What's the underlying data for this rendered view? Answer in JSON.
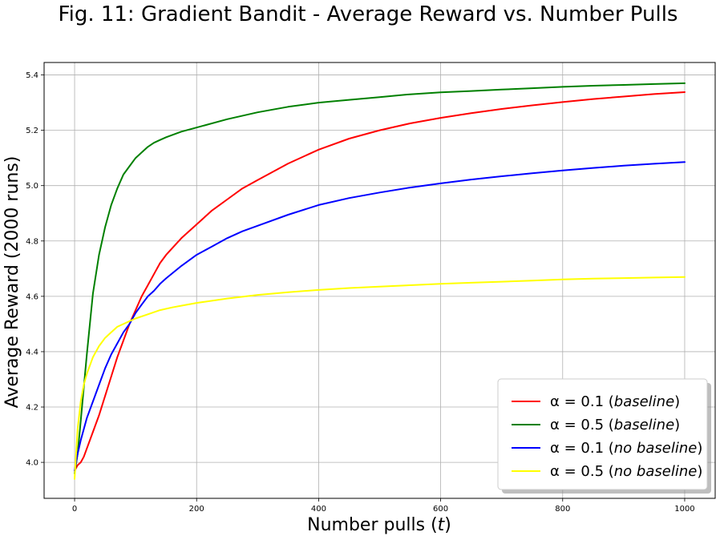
{
  "chart_data": {
    "type": "line",
    "title": "Fig. 11: Gradient Bandit - Average Reward vs. Number Pulls",
    "xlabel": "Number pulls (t)",
    "xlabel_parts": {
      "before": "Number pulls (",
      "var": "t",
      "after": ")"
    },
    "ylabel": "Average Reward (2000 runs)",
    "xlim": [
      -50,
      1050
    ],
    "ylim": [
      3.87,
      5.445
    ],
    "xticks": [
      0,
      200,
      400,
      600,
      800,
      1000
    ],
    "xtick_labels": [
      "0",
      "200",
      "400",
      "600",
      "800",
      "1000"
    ],
    "yticks": [
      4.0,
      4.2,
      4.4,
      4.6,
      4.8,
      5.0,
      5.2,
      5.4
    ],
    "ytick_labels": [
      "4.0",
      "4.2",
      "4.4",
      "4.6",
      "4.8",
      "5.0",
      "5.2",
      "5.4"
    ],
    "grid": true,
    "legend_position": "lower-right",
    "series": [
      {
        "name": "α = 0.1 (baseline)",
        "alpha_text": "α = 0.1 (",
        "italic_text": "baseline",
        "close_text": ")",
        "color": "#ff0000",
        "x": [
          0,
          5,
          10,
          15,
          20,
          30,
          40,
          50,
          60,
          70,
          80,
          90,
          100,
          110,
          120,
          130,
          140,
          150,
          175,
          200,
          225,
          250,
          275,
          300,
          350,
          400,
          450,
          500,
          550,
          600,
          650,
          700,
          750,
          800,
          850,
          900,
          950,
          1000
        ],
        "y": [
          3.97,
          3.99,
          4.0,
          4.02,
          4.05,
          4.11,
          4.17,
          4.24,
          4.31,
          4.38,
          4.44,
          4.5,
          4.55,
          4.6,
          4.64,
          4.68,
          4.72,
          4.75,
          4.81,
          4.86,
          4.91,
          4.95,
          4.99,
          5.02,
          5.08,
          5.13,
          5.17,
          5.2,
          5.225,
          5.245,
          5.262,
          5.277,
          5.29,
          5.302,
          5.313,
          5.322,
          5.331,
          5.338
        ]
      },
      {
        "name": "α = 0.5 (baseline)",
        "alpha_text": "α = 0.5 (",
        "italic_text": "baseline",
        "close_text": ")",
        "color": "#008000",
        "x": [
          0,
          5,
          10,
          15,
          20,
          25,
          30,
          40,
          50,
          60,
          70,
          80,
          90,
          100,
          110,
          120,
          130,
          140,
          150,
          175,
          200,
          250,
          300,
          350,
          400,
          450,
          500,
          550,
          600,
          650,
          700,
          750,
          800,
          850,
          900,
          950,
          1000
        ],
        "y": [
          3.96,
          4.03,
          4.15,
          4.27,
          4.39,
          4.5,
          4.61,
          4.75,
          4.85,
          4.93,
          4.99,
          5.04,
          5.07,
          5.1,
          5.12,
          5.14,
          5.155,
          5.165,
          5.175,
          5.195,
          5.21,
          5.24,
          5.265,
          5.285,
          5.3,
          5.31,
          5.32,
          5.33,
          5.337,
          5.342,
          5.347,
          5.352,
          5.357,
          5.361,
          5.364,
          5.367,
          5.37
        ]
      },
      {
        "name": "α = 0.1 (no baseline)",
        "alpha_text": "α = 0.1 (",
        "italic_text": "no baseline",
        "close_text": ")",
        "color": "#0000ff",
        "x": [
          0,
          5,
          10,
          15,
          20,
          30,
          40,
          50,
          60,
          70,
          80,
          90,
          100,
          110,
          120,
          130,
          140,
          150,
          175,
          200,
          225,
          250,
          275,
          300,
          350,
          400,
          450,
          500,
          550,
          600,
          650,
          700,
          750,
          800,
          850,
          900,
          950,
          1000
        ],
        "y": [
          3.97,
          4.03,
          4.08,
          4.12,
          4.16,
          4.22,
          4.28,
          4.34,
          4.39,
          4.43,
          4.47,
          4.5,
          4.54,
          4.57,
          4.6,
          4.62,
          4.645,
          4.665,
          4.71,
          4.75,
          4.78,
          4.81,
          4.835,
          4.855,
          4.895,
          4.93,
          4.955,
          4.975,
          4.993,
          5.008,
          5.022,
          5.034,
          5.045,
          5.055,
          5.064,
          5.072,
          5.079,
          5.085
        ]
      },
      {
        "name": "α = 0.5 (no baseline)",
        "alpha_text": "α = 0.5 (",
        "italic_text": "no baseline",
        "close_text": ")",
        "color": "#ffff00",
        "x": [
          0,
          3,
          5,
          10,
          15,
          20,
          30,
          40,
          50,
          60,
          70,
          80,
          90,
          100,
          120,
          140,
          160,
          180,
          200,
          250,
          300,
          350,
          400,
          450,
          500,
          550,
          600,
          650,
          700,
          750,
          800,
          850,
          900,
          950,
          1000
        ],
        "y": [
          3.94,
          4.05,
          4.12,
          4.22,
          4.28,
          4.32,
          4.38,
          4.42,
          4.45,
          4.47,
          4.49,
          4.5,
          4.51,
          4.52,
          4.535,
          4.55,
          4.56,
          4.568,
          4.576,
          4.592,
          4.605,
          4.615,
          4.623,
          4.63,
          4.635,
          4.64,
          4.645,
          4.649,
          4.653,
          4.657,
          4.661,
          4.664,
          4.666,
          4.668,
          4.67
        ]
      }
    ]
  }
}
